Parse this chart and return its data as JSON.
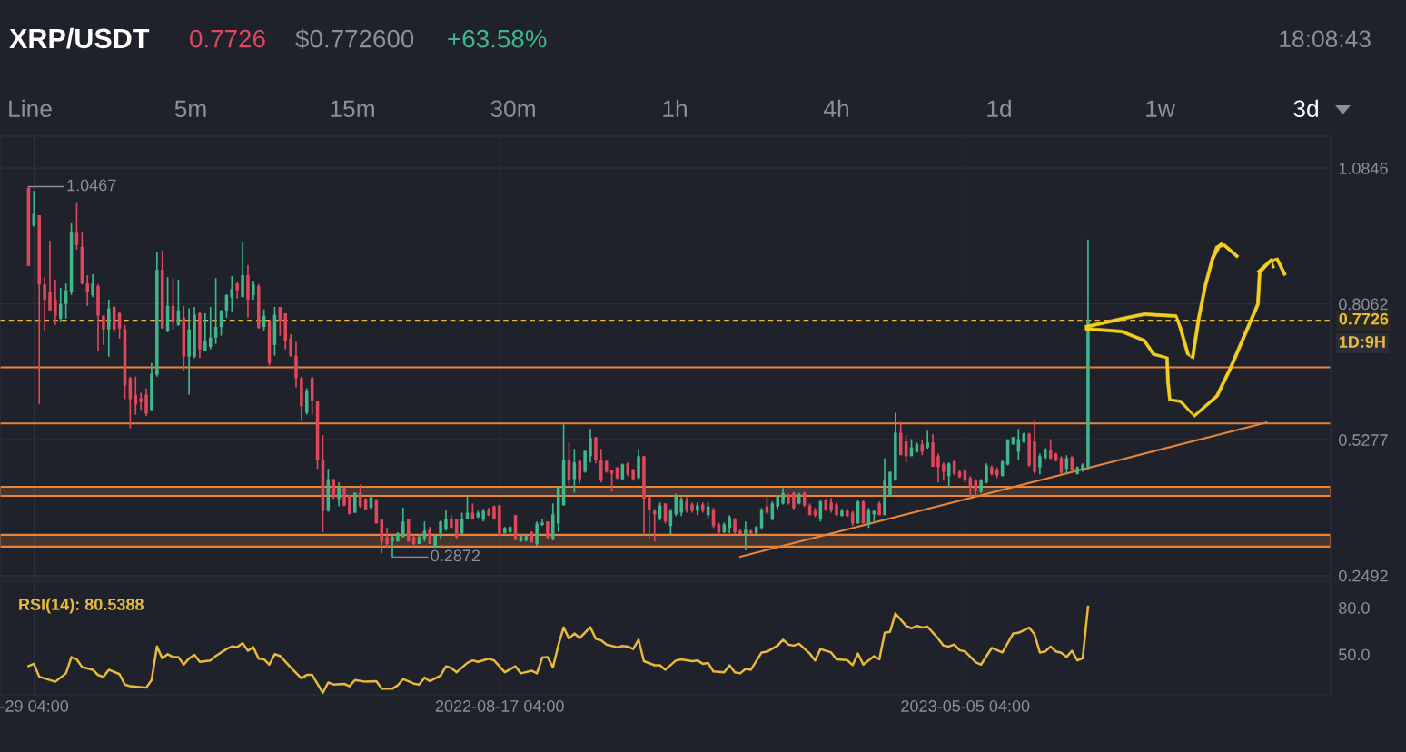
{
  "chart_data": [
    {
      "type": "candlestick",
      "title": "XRP/USDT",
      "annotations": [
        "0.7726",
        "$0.772600",
        "+63.58%",
        "18:08:43",
        "Line",
        "5m",
        "15m",
        "30m",
        "1h",
        "4h",
        "1d",
        "1w",
        "3d",
        "1D:9H",
        {
          "text": "1.0467",
          "x": "2021-11-26",
          "y": 1.0467
        },
        {
          "text": "0.2872",
          "x": "2022-06-18",
          "y": 0.2872
        }
      ],
      "x": [
        "2021-11-26",
        "2021-11-29",
        "2021-12-02",
        "2021-12-05",
        "2021-12-08",
        "2021-12-11",
        "2021-12-14",
        "2021-12-17",
        "2021-12-20",
        "2021-12-23",
        "2021-12-26",
        "2021-12-29",
        "2022-01-01",
        "2022-01-04",
        "2022-01-07",
        "2022-01-10",
        "2022-01-13",
        "2022-01-16",
        "2022-01-19",
        "2022-01-22",
        "2022-01-25",
        "2022-01-28",
        "2022-01-31",
        "2022-02-03",
        "2022-02-06",
        "2022-02-09",
        "2022-02-12",
        "2022-02-15",
        "2022-02-18",
        "2022-02-21",
        "2022-02-24",
        "2022-02-27",
        "2022-03-02",
        "2022-03-05",
        "2022-03-08",
        "2022-03-11",
        "2022-03-14",
        "2022-03-17",
        "2022-03-20",
        "2022-03-23",
        "2022-03-26",
        "2022-03-29",
        "2022-04-01",
        "2022-04-04",
        "2022-04-07",
        "2022-04-10",
        "2022-04-13",
        "2022-04-16",
        "2022-04-19",
        "2022-04-22",
        "2022-04-25",
        "2022-04-28",
        "2022-05-01",
        "2022-05-04",
        "2022-05-07",
        "2022-05-10",
        "2022-05-13",
        "2022-05-16",
        "2022-05-19",
        "2022-05-22",
        "2022-05-25",
        "2022-05-28",
        "2022-05-31",
        "2022-06-03",
        "2022-06-06",
        "2022-06-09",
        "2022-06-12",
        "2022-06-15",
        "2022-06-18",
        "2022-06-21",
        "2022-06-24",
        "2022-06-27",
        "2022-06-30",
        "2022-07-03",
        "2022-07-06",
        "2022-07-09",
        "2022-07-12",
        "2022-07-15",
        "2022-07-18",
        "2022-07-21",
        "2022-07-24",
        "2022-07-27",
        "2022-07-30",
        "2022-08-02",
        "2022-08-05",
        "2022-08-08",
        "2022-08-11",
        "2022-08-14",
        "2022-08-17",
        "2022-08-20",
        "2022-08-23",
        "2022-08-26",
        "2022-08-29",
        "2022-09-01",
        "2022-09-04",
        "2022-09-07",
        "2022-09-10",
        "2022-09-13",
        "2022-09-16",
        "2022-09-19",
        "2022-09-22",
        "2022-09-25",
        "2022-09-28",
        "2022-10-01",
        "2022-10-04",
        "2022-10-07",
        "2022-10-10",
        "2022-10-13",
        "2022-10-16",
        "2022-10-19",
        "2022-10-22",
        "2022-10-25",
        "2022-10-28",
        "2022-10-31",
        "2022-11-03",
        "2022-11-06",
        "2022-11-09",
        "2022-11-12",
        "2022-11-15",
        "2022-11-18",
        "2022-11-21",
        "2022-11-24",
        "2022-11-27",
        "2022-11-30",
        "2022-12-03",
        "2022-12-06",
        "2022-12-09",
        "2022-12-12",
        "2022-12-15",
        "2022-12-18",
        "2022-12-21",
        "2022-12-24",
        "2022-12-27",
        "2022-12-30",
        "2023-01-02",
        "2023-01-05",
        "2023-01-08",
        "2023-01-11",
        "2023-01-14",
        "2023-01-17",
        "2023-01-20",
        "2023-01-23",
        "2023-01-26",
        "2023-01-29",
        "2023-02-01",
        "2023-02-04",
        "2023-02-07",
        "2023-02-10",
        "2023-02-13",
        "2023-02-16",
        "2023-02-19",
        "2023-02-22",
        "2023-02-25",
        "2023-02-28",
        "2023-03-03",
        "2023-03-06",
        "2023-03-09",
        "2023-03-12",
        "2023-03-15",
        "2023-03-18",
        "2023-03-21",
        "2023-03-24",
        "2023-03-27",
        "2023-03-30",
        "2023-04-02",
        "2023-04-05",
        "2023-04-08",
        "2023-04-11",
        "2023-04-14",
        "2023-04-17",
        "2023-04-20",
        "2023-04-23",
        "2023-04-26",
        "2023-04-29",
        "2023-05-02",
        "2023-05-05",
        "2023-05-08",
        "2023-05-11",
        "2023-05-14",
        "2023-05-17",
        "2023-05-20",
        "2023-05-23",
        "2023-05-26",
        "2023-05-29",
        "2023-06-01",
        "2023-06-04",
        "2023-06-07",
        "2023-06-10",
        "2023-06-13",
        "2023-06-16",
        "2023-06-19",
        "2023-06-22",
        "2023-06-25",
        "2023-06-28",
        "2023-07-01",
        "2023-07-04",
        "2023-07-07",
        "2023-07-10",
        "2023-07-13"
      ],
      "ohlc": [
        [
          1.044,
          1.0467,
          0.884,
          0.884
        ],
        [
          0.967,
          1.038,
          0.964,
          0.991
        ],
        [
          0.988,
          0.988,
          0.601,
          0.846
        ],
        [
          0.846,
          0.861,
          0.75,
          0.815
        ],
        [
          0.83,
          0.936,
          0.793,
          0.793
        ],
        [
          0.815,
          0.856,
          0.763,
          0.782
        ],
        [
          0.776,
          0.839,
          0.77,
          0.806
        ],
        [
          0.806,
          0.848,
          0.776,
          0.834
        ],
        [
          0.83,
          0.973,
          0.824,
          0.954
        ],
        [
          0.954,
          1.015,
          0.917,
          0.927
        ],
        [
          0.923,
          0.954,
          0.846,
          0.848
        ],
        [
          0.848,
          0.865,
          0.802,
          0.83
        ],
        [
          0.824,
          0.867,
          0.82,
          0.848
        ],
        [
          0.843,
          0.847,
          0.71,
          0.782
        ],
        [
          0.782,
          0.782,
          0.722,
          0.754
        ],
        [
          0.754,
          0.815,
          0.698,
          0.797
        ],
        [
          0.8,
          0.802,
          0.748,
          0.754
        ],
        [
          0.787,
          0.789,
          0.735,
          0.756
        ],
        [
          0.754,
          0.763,
          0.611,
          0.639
        ],
        [
          0.654,
          0.657,
          0.551,
          0.611
        ],
        [
          0.62,
          0.657,
          0.579,
          0.6
        ],
        [
          0.613,
          0.624,
          0.589,
          0.605
        ],
        [
          0.62,
          0.633,
          0.576,
          0.581
        ],
        [
          0.589,
          0.685,
          0.587,
          0.663
        ],
        [
          0.661,
          0.913,
          0.657,
          0.876
        ],
        [
          0.876,
          0.915,
          0.756,
          0.756
        ],
        [
          0.75,
          0.861,
          0.748,
          0.802
        ],
        [
          0.802,
          0.858,
          0.754,
          0.769
        ],
        [
          0.763,
          0.856,
          0.761,
          0.793
        ],
        [
          0.778,
          0.802,
          0.67,
          0.698
        ],
        [
          0.698,
          0.797,
          0.62,
          0.754
        ],
        [
          0.698,
          0.8,
          0.695,
          0.784
        ],
        [
          0.787,
          0.789,
          0.695,
          0.713
        ],
        [
          0.71,
          0.787,
          0.709,
          0.731
        ],
        [
          0.718,
          0.8,
          0.713,
          0.737
        ],
        [
          0.737,
          0.859,
          0.724,
          0.759
        ],
        [
          0.759,
          0.793,
          0.741,
          0.793
        ],
        [
          0.793,
          0.826,
          0.778,
          0.824
        ],
        [
          0.819,
          0.863,
          0.791,
          0.837
        ],
        [
          0.848,
          0.852,
          0.817,
          0.834
        ],
        [
          0.82,
          0.932,
          0.82,
          0.865
        ],
        [
          0.865,
          0.886,
          0.778,
          0.815
        ],
        [
          0.824,
          0.854,
          0.815,
          0.846
        ],
        [
          0.843,
          0.847,
          0.756,
          0.756
        ],
        [
          0.759,
          0.795,
          0.75,
          0.782
        ],
        [
          0.772,
          0.772,
          0.68,
          0.685
        ],
        [
          0.722,
          0.8,
          0.7,
          0.784
        ],
        [
          0.8,
          0.8,
          0.741,
          0.772
        ],
        [
          0.787,
          0.787,
          0.713,
          0.731
        ],
        [
          0.735,
          0.744,
          0.698,
          0.7
        ],
        [
          0.7,
          0.728,
          0.635,
          0.654
        ],
        [
          0.654,
          0.657,
          0.568,
          0.596
        ],
        [
          0.583,
          0.633,
          0.579,
          0.629
        ],
        [
          0.654,
          0.657,
          0.579,
          0.607
        ],
        [
          0.607,
          0.607,
          0.468,
          0.486
        ],
        [
          0.486,
          0.537,
          0.338,
          0.382
        ],
        [
          0.382,
          0.468,
          0.38,
          0.447
        ],
        [
          0.447,
          0.447,
          0.406,
          0.41
        ],
        [
          0.406,
          0.44,
          0.391,
          0.431
        ],
        [
          0.429,
          0.431,
          0.391,
          0.393
        ],
        [
          0.412,
          0.414,
          0.375,
          0.375
        ],
        [
          0.378,
          0.419,
          0.378,
          0.419
        ],
        [
          0.419,
          0.436,
          0.388,
          0.391
        ],
        [
          0.406,
          0.408,
          0.384,
          0.384
        ],
        [
          0.388,
          0.416,
          0.384,
          0.41
        ],
        [
          0.403,
          0.406,
          0.356,
          0.356
        ],
        [
          0.364,
          0.366,
          0.295,
          0.319
        ],
        [
          0.328,
          0.347,
          0.306,
          0.314
        ],
        [
          0.319,
          0.332,
          0.2872,
          0.328
        ],
        [
          0.319,
          0.338,
          0.319,
          0.336
        ],
        [
          0.328,
          0.388,
          0.328,
          0.36
        ],
        [
          0.366,
          0.366,
          0.319,
          0.319
        ],
        [
          0.328,
          0.332,
          0.308,
          0.314
        ],
        [
          0.314,
          0.332,
          0.314,
          0.328
        ],
        [
          0.323,
          0.36,
          0.319,
          0.341
        ],
        [
          0.345,
          0.349,
          0.314,
          0.314
        ],
        [
          0.308,
          0.332,
          0.306,
          0.332
        ],
        [
          0.336,
          0.362,
          0.325,
          0.36
        ],
        [
          0.345,
          0.384,
          0.341,
          0.364
        ],
        [
          0.366,
          0.373,
          0.347,
          0.347
        ],
        [
          0.366,
          0.366,
          0.325,
          0.328
        ],
        [
          0.336,
          0.378,
          0.334,
          0.366
        ],
        [
          0.366,
          0.412,
          0.364,
          0.378
        ],
        [
          0.378,
          0.397,
          0.364,
          0.364
        ],
        [
          0.369,
          0.382,
          0.367,
          0.378
        ],
        [
          0.364,
          0.386,
          0.36,
          0.382
        ],
        [
          0.384,
          0.388,
          0.371,
          0.373
        ],
        [
          0.391,
          0.393,
          0.366,
          0.366
        ],
        [
          0.393,
          0.393,
          0.332,
          0.332
        ],
        [
          0.336,
          0.349,
          0.336,
          0.347
        ],
        [
          0.338,
          0.351,
          0.336,
          0.349
        ],
        [
          0.373,
          0.373,
          0.321,
          0.323
        ],
        [
          0.319,
          0.332,
          0.319,
          0.33
        ],
        [
          0.321,
          0.332,
          0.319,
          0.33
        ],
        [
          0.338,
          0.34,
          0.317,
          0.317
        ],
        [
          0.314,
          0.36,
          0.31,
          0.356
        ],
        [
          0.353,
          0.364,
          0.351,
          0.358
        ],
        [
          0.36,
          0.36,
          0.325,
          0.327
        ],
        [
          0.323,
          0.397,
          0.321,
          0.375
        ],
        [
          0.356,
          0.432,
          0.339,
          0.43
        ],
        [
          0.393,
          0.559,
          0.393,
          0.486
        ],
        [
          0.486,
          0.522,
          0.435,
          0.444
        ],
        [
          0.447,
          0.509,
          0.419,
          0.481
        ],
        [
          0.484,
          0.486,
          0.438,
          0.447
        ],
        [
          0.462,
          0.505,
          0.46,
          0.505
        ],
        [
          0.494,
          0.55,
          0.481,
          0.531
        ],
        [
          0.533,
          0.533,
          0.479,
          0.486
        ],
        [
          0.486,
          0.509,
          0.44,
          0.444
        ],
        [
          0.484,
          0.486,
          0.46,
          0.462
        ],
        [
          0.466,
          0.466,
          0.421,
          0.458
        ],
        [
          0.471,
          0.471,
          0.447,
          0.449
        ],
        [
          0.447,
          0.479,
          0.444,
          0.477
        ],
        [
          0.479,
          0.481,
          0.453,
          0.457
        ],
        [
          0.466,
          0.468,
          0.444,
          0.447
        ],
        [
          0.449,
          0.509,
          0.447,
          0.494
        ],
        [
          0.494,
          0.494,
          0.336,
          0.407
        ],
        [
          0.41,
          0.412,
          0.325,
          0.384
        ],
        [
          0.382,
          0.386,
          0.319,
          0.375
        ],
        [
          0.367,
          0.399,
          0.362,
          0.393
        ],
        [
          0.397,
          0.397,
          0.356,
          0.36
        ],
        [
          0.351,
          0.386,
          0.334,
          0.382
        ],
        [
          0.375,
          0.417,
          0.371,
          0.412
        ],
        [
          0.378,
          0.41,
          0.371,
          0.406
        ],
        [
          0.401,
          0.41,
          0.378,
          0.384
        ],
        [
          0.395,
          0.399,
          0.378,
          0.382
        ],
        [
          0.382,
          0.399,
          0.373,
          0.393
        ],
        [
          0.395,
          0.399,
          0.378,
          0.382
        ],
        [
          0.373,
          0.399,
          0.367,
          0.391
        ],
        [
          0.384,
          0.388,
          0.347,
          0.351
        ],
        [
          0.354,
          0.358,
          0.332,
          0.338
        ],
        [
          0.338,
          0.358,
          0.336,
          0.354
        ],
        [
          0.347,
          0.373,
          0.336,
          0.369
        ],
        [
          0.364,
          0.367,
          0.334,
          0.338
        ],
        [
          0.341,
          0.343,
          0.334,
          0.334
        ],
        [
          0.334,
          0.36,
          0.301,
          0.343
        ],
        [
          0.341,
          0.343,
          0.334,
          0.336
        ],
        [
          0.336,
          0.351,
          0.334,
          0.349
        ],
        [
          0.347,
          0.388,
          0.343,
          0.384
        ],
        [
          0.391,
          0.41,
          0.375,
          0.378
        ],
        [
          0.366,
          0.401,
          0.362,
          0.397
        ],
        [
          0.391,
          0.414,
          0.386,
          0.412
        ],
        [
          0.397,
          0.429,
          0.395,
          0.419
        ],
        [
          0.416,
          0.417,
          0.395,
          0.397
        ],
        [
          0.419,
          0.421,
          0.384,
          0.388
        ],
        [
          0.397,
          0.419,
          0.395,
          0.416
        ],
        [
          0.419,
          0.421,
          0.39,
          0.393
        ],
        [
          0.393,
          0.397,
          0.373,
          0.373
        ],
        [
          0.382,
          0.388,
          0.369,
          0.373
        ],
        [
          0.364,
          0.404,
          0.36,
          0.401
        ],
        [
          0.404,
          0.406,
          0.382,
          0.384
        ],
        [
          0.399,
          0.408,
          0.378,
          0.384
        ],
        [
          0.395,
          0.399,
          0.371,
          0.373
        ],
        [
          0.371,
          0.386,
          0.371,
          0.382
        ],
        [
          0.382,
          0.386,
          0.369,
          0.371
        ],
        [
          0.378,
          0.382,
          0.351,
          0.356
        ],
        [
          0.356,
          0.404,
          0.356,
          0.401
        ],
        [
          0.401,
          0.404,
          0.356,
          0.356
        ],
        [
          0.353,
          0.388,
          0.347,
          0.384
        ],
        [
          0.375,
          0.382,
          0.36,
          0.382
        ],
        [
          0.397,
          0.401,
          0.373,
          0.373
        ],
        [
          0.373,
          0.49,
          0.373,
          0.444
        ],
        [
          0.412,
          0.462,
          0.412,
          0.462
        ],
        [
          0.444,
          0.583,
          0.444,
          0.542
        ],
        [
          0.542,
          0.564,
          0.496,
          0.496
        ],
        [
          0.524,
          0.537,
          0.481,
          0.494
        ],
        [
          0.494,
          0.529,
          0.494,
          0.512
        ],
        [
          0.503,
          0.522,
          0.501,
          0.518
        ],
        [
          0.518,
          0.527,
          0.496,
          0.503
        ],
        [
          0.512,
          0.546,
          0.509,
          0.522
        ],
        [
          0.522,
          0.539,
          0.472,
          0.472
        ],
        [
          0.494,
          0.499,
          0.44,
          0.472
        ],
        [
          0.477,
          0.481,
          0.444,
          0.462
        ],
        [
          0.453,
          0.481,
          0.431,
          0.479
        ],
        [
          0.483,
          0.486,
          0.455,
          0.458
        ],
        [
          0.462,
          0.466,
          0.449,
          0.451
        ],
        [
          0.464,
          0.468,
          0.44,
          0.444
        ],
        [
          0.449,
          0.453,
          0.41,
          0.431
        ],
        [
          0.444,
          0.447,
          0.41,
          0.423
        ],
        [
          0.421,
          0.447,
          0.418,
          0.444
        ],
        [
          0.44,
          0.479,
          0.438,
          0.475
        ],
        [
          0.471,
          0.475,
          0.455,
          0.457
        ],
        [
          0.466,
          0.471,
          0.449,
          0.455
        ],
        [
          0.453,
          0.486,
          0.453,
          0.483
        ],
        [
          0.477,
          0.529,
          0.475,
          0.527
        ],
        [
          0.518,
          0.533,
          0.518,
          0.533
        ],
        [
          0.503,
          0.55,
          0.486,
          0.529
        ],
        [
          0.522,
          0.542,
          0.522,
          0.54
        ],
        [
          0.54,
          0.542,
          0.472,
          0.475
        ],
        [
          0.524,
          0.568,
          0.458,
          0.462
        ],
        [
          0.471,
          0.499,
          0.457,
          0.494
        ],
        [
          0.49,
          0.512,
          0.486,
          0.509
        ],
        [
          0.507,
          0.529,
          0.486,
          0.49
        ],
        [
          0.499,
          0.501,
          0.483,
          0.486
        ],
        [
          0.49,
          0.494,
          0.457,
          0.46
        ],
        [
          0.468,
          0.496,
          0.459,
          0.49
        ],
        [
          0.492,
          0.494,
          0.462,
          0.466
        ],
        [
          0.457,
          0.473,
          0.457,
          0.471
        ],
        [
          0.464,
          0.479,
          0.462,
          0.477
        ],
        [
          0.471,
          0.938,
          0.466,
          0.7726
        ]
      ],
      "series": [
        {
          "type": "line",
          "color": "#e8833a",
          "x": [
            "2022-12-30",
            "2023-10-21"
          ],
          "values": [
            0.288,
            0.563
          ]
        }
      ],
      "ref_lines": [
        {
          "axis": "y",
          "value": 0.6762,
          "color": "#e8833a"
        },
        {
          "axis": "y",
          "value": 0.5611,
          "color": "#e8833a"
        },
        {
          "axis": "y",
          "value": 0.7726,
          "label": "0.7726",
          "color": "#e9b93c",
          "line_style": "dashed"
        }
      ],
      "bands": [
        {
          "axis": "y",
          "from": 0.4126,
          "to": 0.4311,
          "color": "#e8833a"
        },
        {
          "axis": "y",
          "from": 0.3086,
          "to": 0.3327,
          "color": "#e8833a"
        }
      ],
      "xlim": [
        "2021-11-10",
        "2023-11-26"
      ],
      "xticks": [
        {
          "value": "2021-11-29T04:00",
          "label": null
        },
        {
          "value": "2022-08-17T04:00",
          "label": null
        },
        {
          "value": "2023-05-05T04:00",
          "label": null
        }
      ],
      "ylim": [
        0.245,
        1.15
      ],
      "yticks": [
        0.2492,
        0.5277,
        0.8062,
        1.0846
      ],
      "grid": true,
      "tick_labels": "y"
    },
    {
      "type": "line",
      "title": "RSI(14): 80.5388",
      "color": "#e9b93c",
      "x": [
        "2021-11-26",
        "2021-11-29",
        "2021-12-02",
        "2021-12-11",
        "2021-12-17",
        "2021-12-20",
        "2021-12-23",
        "2021-12-26",
        "2022-01-01",
        "2022-01-04",
        "2022-01-07",
        "2022-01-10",
        "2022-01-16",
        "2022-01-19",
        "2022-01-22",
        "2022-01-31",
        "2022-02-03",
        "2022-02-06",
        "2022-02-09",
        "2022-02-12",
        "2022-02-15",
        "2022-02-18",
        "2022-02-21",
        "2022-02-24",
        "2022-02-27",
        "2022-03-02",
        "2022-03-08",
        "2022-03-11",
        "2022-03-17",
        "2022-03-20",
        "2022-03-23",
        "2022-03-26",
        "2022-03-29",
        "2022-04-01",
        "2022-04-04",
        "2022-04-07",
        "2022-04-10",
        "2022-04-13",
        "2022-04-16",
        "2022-04-22",
        "2022-04-28",
        "2022-05-01",
        "2022-05-04",
        "2022-05-10",
        "2022-05-13",
        "2022-05-16",
        "2022-05-22",
        "2022-05-25",
        "2022-05-28",
        "2022-06-03",
        "2022-06-09",
        "2022-06-12",
        "2022-06-18",
        "2022-06-21",
        "2022-06-24",
        "2022-06-30",
        "2022-07-03",
        "2022-07-06",
        "2022-07-09",
        "2022-07-15",
        "2022-07-18",
        "2022-07-21",
        "2022-07-24",
        "2022-07-30",
        "2022-08-02",
        "2022-08-05",
        "2022-08-11",
        "2022-08-14",
        "2022-08-20",
        "2022-08-26",
        "2022-08-29",
        "2022-09-04",
        "2022-09-07",
        "2022-09-10",
        "2022-09-13",
        "2022-09-16",
        "2022-09-19",
        "2022-09-22",
        "2022-09-25",
        "2022-09-28",
        "2022-10-01",
        "2022-10-07",
        "2022-10-10",
        "2022-10-13",
        "2022-10-16",
        "2022-10-22",
        "2022-10-25",
        "2022-10-28",
        "2022-10-31",
        "2022-11-03",
        "2022-11-06",
        "2022-11-12",
        "2022-11-15",
        "2022-11-18",
        "2022-11-24",
        "2022-11-27",
        "2022-12-03",
        "2022-12-06",
        "2022-12-09",
        "2022-12-12",
        "2022-12-15",
        "2022-12-21",
        "2022-12-24",
        "2022-12-27",
        "2022-12-30",
        "2023-01-02",
        "2023-01-05",
        "2023-01-11",
        "2023-01-14",
        "2023-01-20",
        "2023-01-23",
        "2023-01-26",
        "2023-01-29",
        "2023-02-01",
        "2023-02-07",
        "2023-02-10",
        "2023-02-13",
        "2023-02-19",
        "2023-02-22",
        "2023-02-28",
        "2023-03-03",
        "2023-03-06",
        "2023-03-09",
        "2023-03-15",
        "2023-03-18",
        "2023-03-21",
        "2023-03-24",
        "2023-03-27",
        "2023-04-02",
        "2023-04-05",
        "2023-04-08",
        "2023-04-11",
        "2023-04-14",
        "2023-04-20",
        "2023-04-23",
        "2023-04-26",
        "2023-04-29",
        "2023-05-02",
        "2023-05-05",
        "2023-05-11",
        "2023-05-14",
        "2023-05-20",
        "2023-05-26",
        "2023-06-01",
        "2023-06-04",
        "2023-06-10",
        "2023-06-13",
        "2023-06-16",
        "2023-06-19",
        "2023-06-22",
        "2023-06-25",
        "2023-06-28",
        "2023-07-01",
        "2023-07-04",
        "2023-07-07",
        "2023-07-10",
        "2023-07-13"
      ],
      "values": [
        42.5,
        43.9,
        35.6,
        32.4,
        37.8,
        48.2,
        46.8,
        41.9,
        40.1,
        36.7,
        35.5,
        40.1,
        37.3,
        30.6,
        29.5,
        28.6,
        33.5,
        55.1,
        47.4,
        50.1,
        48.3,
        48.3,
        43.4,
        47.4,
        49.7,
        45.2,
        46.1,
        49.0,
        53.4,
        55.1,
        54.6,
        57.2,
        52.3,
        54.6,
        47.2,
        46.8,
        43.4,
        50.1,
        49.0,
        41.6,
        34.6,
        36.8,
        36.8,
        25.3,
        31.9,
        30.6,
        31.0,
        29.5,
        33.5,
        32.4,
        32.8,
        27.9,
        27.9,
        30.1,
        34.1,
        31.2,
        30.6,
        35.0,
        32.8,
        36.3,
        42.3,
        41.2,
        38.5,
        44.5,
        46.1,
        45.2,
        47.2,
        46.1,
        38.5,
        42.3,
        37.8,
        39.5,
        37.8,
        47.9,
        48.3,
        41.6,
        55.7,
        67.4,
        60.1,
        63.4,
        60.5,
        67.4,
        60.1,
        59.0,
        56.3,
        54.6,
        55.4,
        55.0,
        53.4,
        59.4,
        45.6,
        43.0,
        43.0,
        40.1,
        46.1,
        46.8,
        45.6,
        46.1,
        43.9,
        44.5,
        39.0,
        38.5,
        43.0,
        38.5,
        37.8,
        40.6,
        40.1,
        51.2,
        51.7,
        55.6,
        59.4,
        56.3,
        55.6,
        56.8,
        50.5,
        46.1,
        53.4,
        51.2,
        46.8,
        46.3,
        43.0,
        50.5,
        43.4,
        48.8,
        46.8,
        63.8,
        64.5,
        76.3,
        68.3,
        66.7,
        68.3,
        67.2,
        67.8,
        60.1,
        55.6,
        55.0,
        56.3,
        52.7,
        51.9,
        45.0,
        43.4,
        54.1,
        51.2,
        63.4,
        63.8,
        67.2,
        62.8,
        51.2,
        51.9,
        55.0,
        51.9,
        51.0,
        48.3,
        52.3,
        46.1,
        47.4,
        80.5388
      ],
      "xlim": [
        "2021-11-10",
        "2023-11-26"
      ],
      "xticks": [
        {
          "value": "2021-11-29T04:00",
          "label": "-29 04:00"
        },
        {
          "value": "2022-08-17T04:00",
          "label": "2022-08-17 04:00"
        },
        {
          "value": "2023-05-05T04:00",
          "label": "2023-05-05 04:00"
        }
      ],
      "ylim": [
        24,
        97
      ],
      "yticks": [
        {
          "value": 80,
          "label": "80.0"
        },
        {
          "value": 50,
          "label": "50.0"
        }
      ],
      "grid": "x"
    }
  ]
}
